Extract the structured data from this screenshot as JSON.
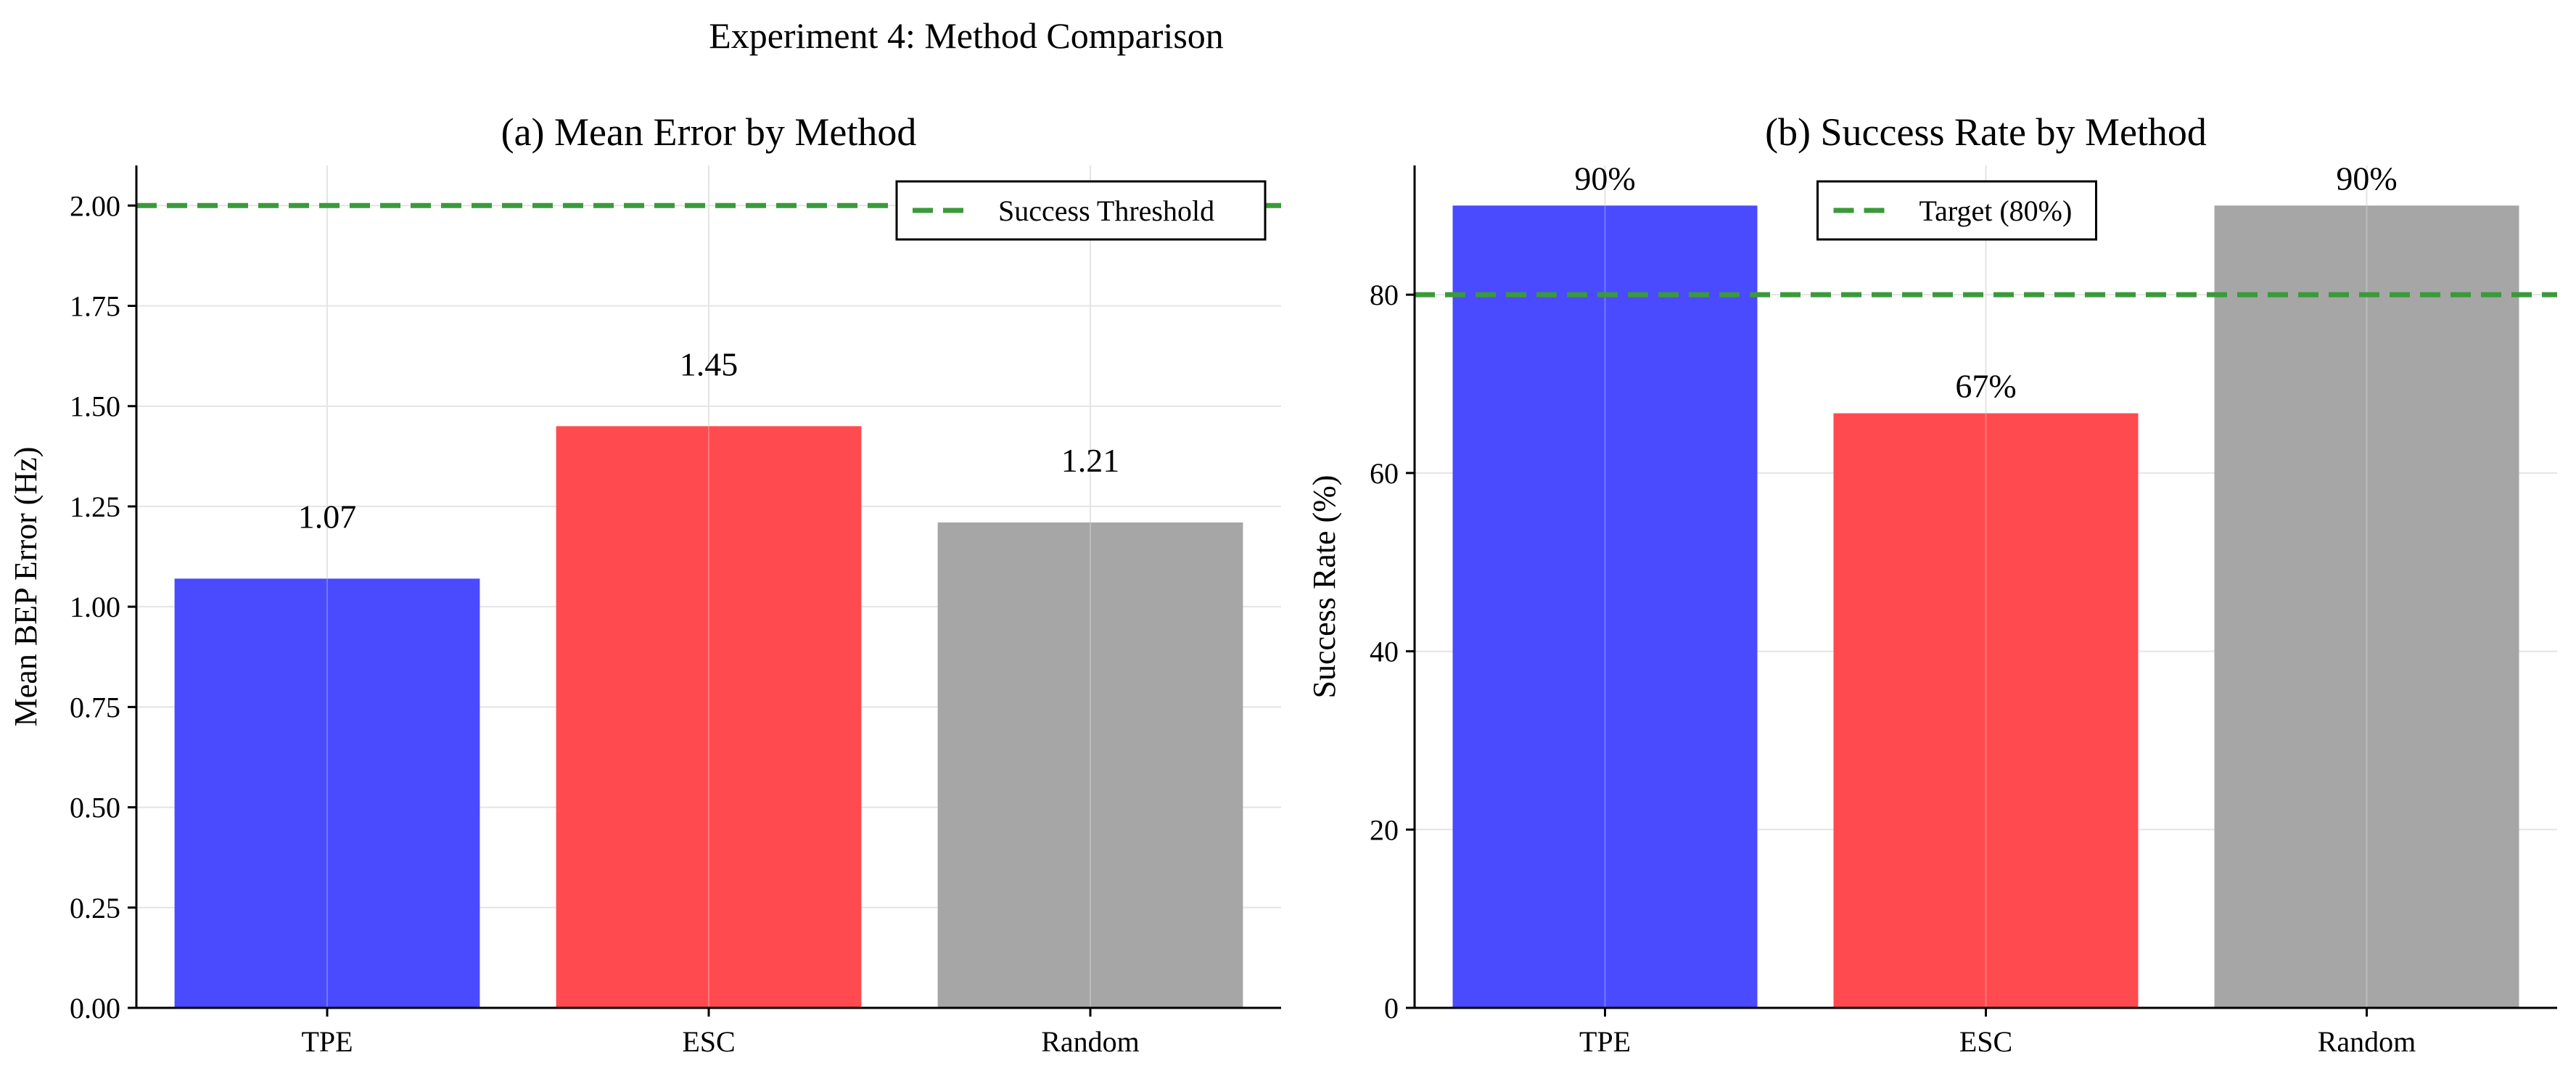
{
  "figure": {
    "suptitle": "Experiment 4: Method Comparison"
  },
  "colors": {
    "tpe": "#4a4aff",
    "esc": "#ff4b4f",
    "random": "#a6a6a6",
    "threshold": "#3a9a3a",
    "grid": "#e4e4e4"
  },
  "chart_data": [
    {
      "type": "bar",
      "title": "(a) Mean Error by Method",
      "xlabel": "",
      "ylabel": "Mean BEP Error (Hz)",
      "categories": [
        "TPE",
        "ESC",
        "Random"
      ],
      "values": [
        1.07,
        1.45,
        1.21
      ],
      "value_labels": [
        "1.07",
        "1.45",
        "1.21"
      ],
      "ylim": [
        0,
        2.1
      ],
      "yticks": [
        0,
        0.25,
        0.5,
        0.75,
        1.0,
        1.25,
        1.5,
        1.75,
        2.0
      ],
      "ytick_labels": [
        "0.00",
        "0.25",
        "0.50",
        "0.75",
        "1.00",
        "1.25",
        "1.50",
        "1.75",
        "2.00"
      ],
      "reference_line": {
        "value": 2.0,
        "label": "Success Threshold",
        "style": "dashed"
      },
      "legend": {
        "position": "top-right",
        "entries": [
          "Success Threshold"
        ]
      },
      "grid": true
    },
    {
      "type": "bar",
      "title": "(b) Success Rate by Method",
      "xlabel": "",
      "ylabel": "Success Rate (%)",
      "categories": [
        "TPE",
        "ESC",
        "Random"
      ],
      "values": [
        90,
        66.7,
        90
      ],
      "value_labels": [
        "90%",
        "67%",
        "90%"
      ],
      "ylim": [
        0,
        94.5
      ],
      "yticks": [
        0,
        20,
        40,
        60,
        80
      ],
      "ytick_labels": [
        "0",
        "20",
        "40",
        "60",
        "80"
      ],
      "reference_line": {
        "value": 80,
        "label": "Target (80%)",
        "style": "dashed"
      },
      "legend": {
        "position": "top-center",
        "entries": [
          "Target (80%)"
        ]
      },
      "grid": true
    }
  ]
}
